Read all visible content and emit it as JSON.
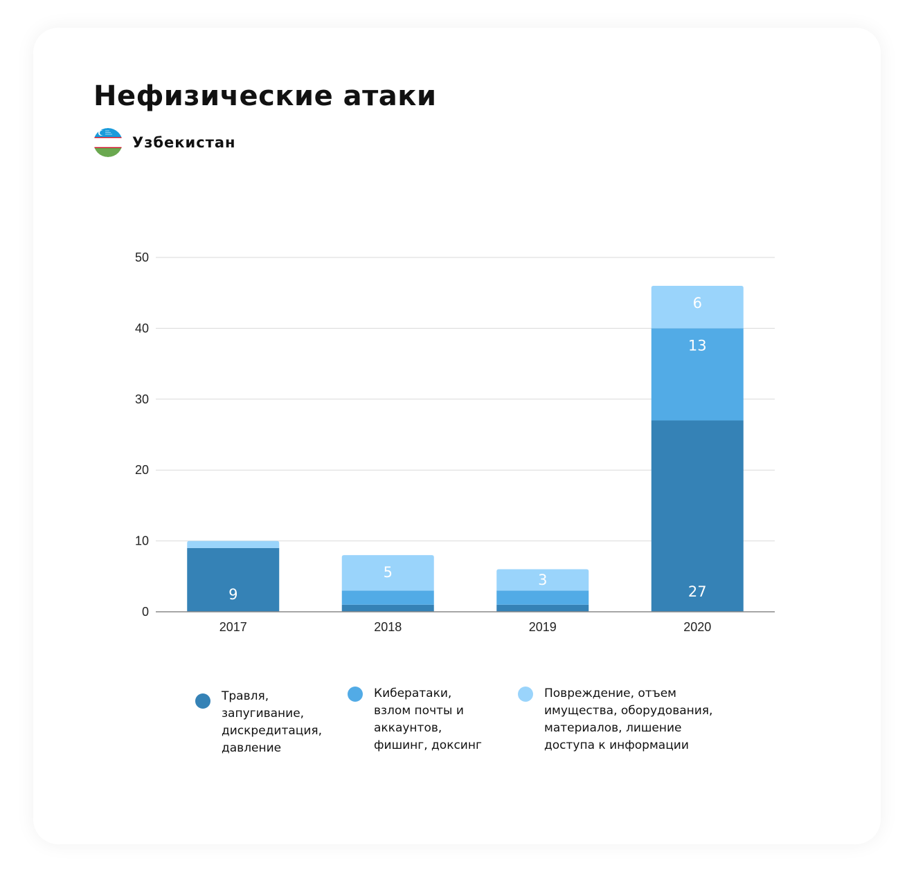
{
  "header": {
    "title": "Нефизические атаки",
    "country": "Узбекистан",
    "flag_icon": "uzbekistan-flag-icon"
  },
  "colors": {
    "series1": "#3582b6",
    "series2": "#52abe6",
    "series3": "#9ad4fb",
    "grid": "#d9d9d9",
    "axis": "#888888",
    "label": "#ffffff"
  },
  "chart_data": {
    "type": "bar",
    "stacked": true,
    "categories": [
      "2017",
      "2018",
      "2019",
      "2020"
    ],
    "series": [
      {
        "name": "Травля,\nзапугивание,\nдискредитация,\nдавление",
        "values": [
          9,
          1,
          1,
          27
        ]
      },
      {
        "name": "Кибератаки,\nвзлом почты и\nаккаунтов,\nфишинг, доксинг",
        "values": [
          0,
          2,
          2,
          13
        ]
      },
      {
        "name": "Повреждение, отъем\nимущества, оборудования,\nматериалов, лишение\nдоступа к информации",
        "values": [
          1,
          5,
          3,
          6
        ]
      }
    ],
    "data_labels": [
      {
        "category": "2017",
        "series": 0,
        "text": "9"
      },
      {
        "category": "2018",
        "series": 2,
        "text": "5"
      },
      {
        "category": "2019",
        "series": 2,
        "text": "3"
      },
      {
        "category": "2020",
        "series": 0,
        "text": "27"
      },
      {
        "category": "2020",
        "series": 1,
        "text": "13"
      },
      {
        "category": "2020",
        "series": 2,
        "text": "6"
      }
    ],
    "yticks": [
      "0",
      "10",
      "20",
      "30",
      "40",
      "50"
    ],
    "ylim": [
      0,
      50
    ],
    "grid": true,
    "legend_position": "bottom"
  }
}
